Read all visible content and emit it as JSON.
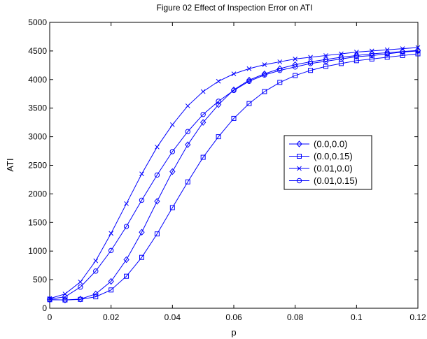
{
  "chart_data": {
    "type": "line",
    "title": "Figure 02 Effect of Inspection Error on ATI",
    "xlabel": "p",
    "ylabel": "ATI",
    "xlim": [
      0,
      0.12
    ],
    "ylim": [
      0,
      5000
    ],
    "xticks": [
      0,
      0.02,
      0.04,
      0.06,
      0.08,
      0.1,
      0.12
    ],
    "xtick_labels": [
      "0",
      "0.02",
      "0.04",
      "0.06",
      "0.08",
      "0.1",
      "0.12"
    ],
    "yticks": [
      0,
      500,
      1000,
      1500,
      2000,
      2500,
      3000,
      3500,
      4000,
      4500,
      5000
    ],
    "ytick_labels": [
      "0",
      "500",
      "1000",
      "1500",
      "2000",
      "2500",
      "3000",
      "3500",
      "4000",
      "4500",
      "5000"
    ],
    "grid": false,
    "legend_position": "right",
    "line_color": "#0000ff",
    "x": [
      0,
      0.005,
      0.01,
      0.015,
      0.02,
      0.025,
      0.03,
      0.035,
      0.04,
      0.045,
      0.05,
      0.055,
      0.06,
      0.065,
      0.07,
      0.075,
      0.08,
      0.085,
      0.09,
      0.095,
      0.1,
      0.105,
      0.11,
      0.115,
      0.12
    ],
    "series": [
      {
        "name": "(0.0,0.0)",
        "marker": "diamond",
        "values": [
          150,
          145,
          160,
          250,
          470,
          850,
          1330,
          1870,
          2390,
          2860,
          3250,
          3560,
          3820,
          3990,
          4100,
          4190,
          4260,
          4310,
          4350,
          4390,
          4420,
          4450,
          4470,
          4490,
          4510
        ]
      },
      {
        "name": "(0.0,0.15)",
        "marker": "square",
        "values": [
          150,
          145,
          155,
          200,
          320,
          560,
          890,
          1300,
          1760,
          2210,
          2640,
          3000,
          3320,
          3580,
          3790,
          3950,
          4070,
          4160,
          4230,
          4280,
          4330,
          4360,
          4390,
          4420,
          4450
        ]
      },
      {
        "name": "(0.01,0.0)",
        "marker": "x",
        "values": [
          170,
          250,
          460,
          830,
          1310,
          1830,
          2350,
          2820,
          3210,
          3540,
          3790,
          3970,
          4100,
          4190,
          4260,
          4310,
          4360,
          4390,
          4420,
          4450,
          4480,
          4500,
          4520,
          4540,
          4560
        ]
      },
      {
        "name": "(0.01,0.15)",
        "marker": "circle",
        "values": [
          160,
          200,
          370,
          650,
          1010,
          1430,
          1890,
          2330,
          2740,
          3090,
          3390,
          3620,
          3810,
          3970,
          4080,
          4160,
          4220,
          4280,
          4320,
          4360,
          4400,
          4420,
          4450,
          4480,
          4500
        ]
      }
    ]
  }
}
